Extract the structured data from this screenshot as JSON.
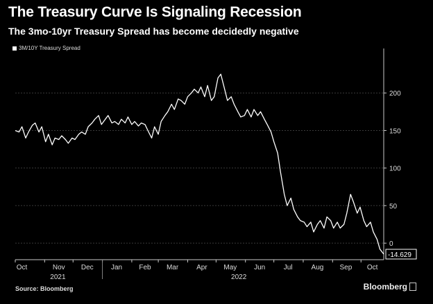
{
  "title": "The Treasury Curve Is Signaling Recession",
  "subtitle": "The 3mo-10yr Treasury Spread has become decidedly negative",
  "source": "Source: Bloomberg",
  "brand": "Bloomberg",
  "colors": {
    "background": "#000000",
    "line": "#ffffff",
    "grid": "#3a3a3a"
  },
  "chart_data": {
    "type": "line",
    "title": "The Treasury Curve Is Signaling Recession",
    "subtitle": "The 3mo-10yr Treasury Spread has become decidedly negative",
    "xlabel": "",
    "ylabel": "",
    "x_tick_labels": [
      "Oct",
      "Nov",
      "Dec",
      "Jan",
      "Feb",
      "Mar",
      "Apr",
      "May",
      "Jun",
      "Jul",
      "Aug",
      "Sep",
      "Oct"
    ],
    "year_labels": [
      "2021",
      "2022"
    ],
    "y_ticks": [
      0,
      50,
      100,
      150,
      200
    ],
    "ylim": [
      -22,
      250
    ],
    "xlim": [
      "2021-10-01",
      "2022-10-25"
    ],
    "grid": "horizontal dashed",
    "legend_position": "top-left",
    "last_value_label": "-14.629",
    "series": [
      {
        "name": "3M/10Y Treasury Spread",
        "points": [
          [
            "2021-10-01",
            150
          ],
          [
            "2021-10-05",
            148
          ],
          [
            "2021-10-08",
            155
          ],
          [
            "2021-10-12",
            140
          ],
          [
            "2021-10-15",
            148
          ],
          [
            "2021-10-19",
            157
          ],
          [
            "2021-10-22",
            160
          ],
          [
            "2021-10-26",
            148
          ],
          [
            "2021-10-29",
            155
          ],
          [
            "2021-11-02",
            135
          ],
          [
            "2021-11-05",
            145
          ],
          [
            "2021-11-09",
            131
          ],
          [
            "2021-11-12",
            140
          ],
          [
            "2021-11-16",
            138
          ],
          [
            "2021-11-19",
            143
          ],
          [
            "2021-11-23",
            138
          ],
          [
            "2021-11-26",
            133
          ],
          [
            "2021-11-30",
            140
          ],
          [
            "2021-12-03",
            138
          ],
          [
            "2021-12-07",
            145
          ],
          [
            "2021-12-10",
            148
          ],
          [
            "2021-12-14",
            145
          ],
          [
            "2021-12-17",
            155
          ],
          [
            "2021-12-21",
            160
          ],
          [
            "2021-12-24",
            165
          ],
          [
            "2021-12-28",
            170
          ],
          [
            "2021-12-31",
            158
          ],
          [
            "2022-01-04",
            165
          ],
          [
            "2022-01-07",
            170
          ],
          [
            "2022-01-11",
            160
          ],
          [
            "2022-01-14",
            162
          ],
          [
            "2022-01-18",
            158
          ],
          [
            "2022-01-21",
            165
          ],
          [
            "2022-01-25",
            160
          ],
          [
            "2022-01-28",
            168
          ],
          [
            "2022-02-01",
            158
          ],
          [
            "2022-02-04",
            162
          ],
          [
            "2022-02-08",
            156
          ],
          [
            "2022-02-11",
            160
          ],
          [
            "2022-02-15",
            158
          ],
          [
            "2022-02-18",
            150
          ],
          [
            "2022-02-22",
            140
          ],
          [
            "2022-02-25",
            155
          ],
          [
            "2022-03-01",
            145
          ],
          [
            "2022-03-04",
            162
          ],
          [
            "2022-03-08",
            170
          ],
          [
            "2022-03-11",
            175
          ],
          [
            "2022-03-15",
            185
          ],
          [
            "2022-03-18",
            178
          ],
          [
            "2022-03-22",
            192
          ],
          [
            "2022-03-25",
            190
          ],
          [
            "2022-03-29",
            185
          ],
          [
            "2022-04-01",
            195
          ],
          [
            "2022-04-05",
            200
          ],
          [
            "2022-04-08",
            205
          ],
          [
            "2022-04-12",
            200
          ],
          [
            "2022-04-15",
            208
          ],
          [
            "2022-04-19",
            195
          ],
          [
            "2022-04-22",
            210
          ],
          [
            "2022-04-26",
            190
          ],
          [
            "2022-04-29",
            195
          ],
          [
            "2022-05-03",
            220
          ],
          [
            "2022-05-06",
            225
          ],
          [
            "2022-05-10",
            205
          ],
          [
            "2022-05-13",
            190
          ],
          [
            "2022-05-17",
            195
          ],
          [
            "2022-05-20",
            185
          ],
          [
            "2022-05-24",
            175
          ],
          [
            "2022-05-27",
            168
          ],
          [
            "2022-05-31",
            170
          ],
          [
            "2022-06-03",
            178
          ],
          [
            "2022-06-07",
            168
          ],
          [
            "2022-06-10",
            178
          ],
          [
            "2022-06-14",
            170
          ],
          [
            "2022-06-17",
            175
          ],
          [
            "2022-06-21",
            165
          ],
          [
            "2022-06-24",
            158
          ],
          [
            "2022-06-28",
            148
          ],
          [
            "2022-07-01",
            135
          ],
          [
            "2022-07-05",
            120
          ],
          [
            "2022-07-08",
            95
          ],
          [
            "2022-07-12",
            65
          ],
          [
            "2022-07-15",
            50
          ],
          [
            "2022-07-19",
            60
          ],
          [
            "2022-07-22",
            45
          ],
          [
            "2022-07-26",
            35
          ],
          [
            "2022-07-29",
            30
          ],
          [
            "2022-08-02",
            28
          ],
          [
            "2022-08-05",
            22
          ],
          [
            "2022-08-09",
            28
          ],
          [
            "2022-08-12",
            15
          ],
          [
            "2022-08-16",
            25
          ],
          [
            "2022-08-19",
            30
          ],
          [
            "2022-08-23",
            20
          ],
          [
            "2022-08-26",
            35
          ],
          [
            "2022-08-30",
            30
          ],
          [
            "2022-09-02",
            20
          ],
          [
            "2022-09-06",
            28
          ],
          [
            "2022-09-09",
            20
          ],
          [
            "2022-09-13",
            25
          ],
          [
            "2022-09-16",
            40
          ],
          [
            "2022-09-20",
            65
          ],
          [
            "2022-09-23",
            55
          ],
          [
            "2022-09-27",
            40
          ],
          [
            "2022-09-30",
            48
          ],
          [
            "2022-10-04",
            30
          ],
          [
            "2022-10-07",
            22
          ],
          [
            "2022-10-11",
            28
          ],
          [
            "2022-10-14",
            15
          ],
          [
            "2022-10-18",
            5
          ],
          [
            "2022-10-21",
            -8
          ],
          [
            "2022-10-25",
            -14.629
          ]
        ]
      }
    ]
  }
}
